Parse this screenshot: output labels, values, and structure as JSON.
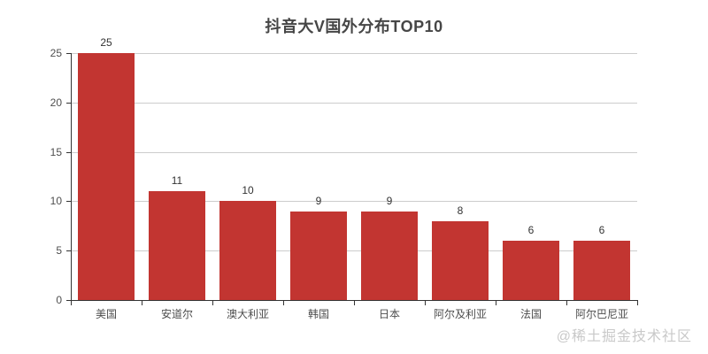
{
  "chart_data": {
    "type": "bar",
    "title": "抖音大V国外分布TOP10",
    "categories": [
      "美国",
      "安道尔",
      "澳大利亚",
      "韩国",
      "日本",
      "阿尔及利亚",
      "法国",
      "阿尔巴尼亚"
    ],
    "values": [
      25,
      11,
      10,
      9,
      9,
      8,
      6,
      6
    ],
    "value_labels": [
      "25",
      "11",
      "10",
      "9",
      "9",
      "8",
      "6",
      "6"
    ],
    "xlabel": "",
    "ylabel": "",
    "ylim": [
      0,
      25
    ],
    "yticks": [
      0,
      5,
      10,
      15,
      20,
      25
    ],
    "grid": "horizontal-only",
    "legend_position": "none",
    "colors": {
      "bar": "#c23531",
      "axis_line": "#333333",
      "gridline": "#cccccc",
      "value_label": "#333333",
      "axis_label": "#4e4e4e",
      "title": "#464646"
    }
  },
  "watermark": {
    "text": "@稀土掘金技术社区",
    "color": "#c9c9c9"
  }
}
